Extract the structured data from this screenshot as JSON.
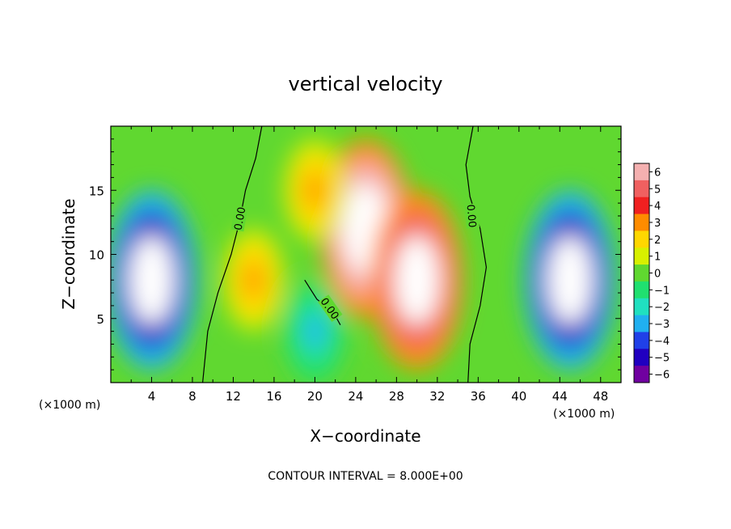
{
  "chart_data": {
    "type": "heatmap",
    "title": "vertical velocity",
    "xlabel": "X−coordinate",
    "ylabel": "Z−coordinate",
    "x_unit_label": "(×1000 m)",
    "y_unit_label": "(×1000 m)",
    "xlim": [
      0,
      50
    ],
    "ylim": [
      0,
      20
    ],
    "x_ticks": [
      4,
      8,
      12,
      16,
      20,
      24,
      28,
      32,
      36,
      40,
      44,
      48
    ],
    "y_ticks": [
      5,
      10,
      15
    ],
    "colorbar": {
      "levels": [
        6,
        5,
        4,
        3,
        2,
        1,
        0,
        -1,
        -2,
        -3,
        -4,
        -5,
        -6
      ],
      "labels": [
        "6",
        "5",
        "4",
        "3",
        "2",
        "1",
        "0",
        "−1",
        "−2",
        "−3",
        "−4",
        "−5",
        "−6"
      ],
      "colors": [
        "#f4b0b0",
        "#f06060",
        "#f02020",
        "#ff8c00",
        "#ffd700",
        "#d8f000",
        "#60d830",
        "#20e070",
        "#20e0c0",
        "#20b0f0",
        "#2040e8",
        "#2000c0",
        "#7000a0"
      ]
    },
    "contour_labels": [
      "0.00",
      "0.00",
      "0.00"
    ],
    "note": "CONTOUR INTERVAL = 8.000E+00",
    "field_features": [
      {
        "x": 25,
        "z": 12,
        "w": 12
      },
      {
        "x": 30,
        "z": 8,
        "w": 10
      },
      {
        "x": 20,
        "z": 15,
        "w": 3
      },
      {
        "x": 14,
        "z": 8,
        "w": 3
      },
      {
        "x": 4,
        "z": 8,
        "w": -11
      },
      {
        "x": 45,
        "z": 8,
        "w": -11
      },
      {
        "x": 20,
        "z": 4,
        "w": -3
      }
    ]
  }
}
